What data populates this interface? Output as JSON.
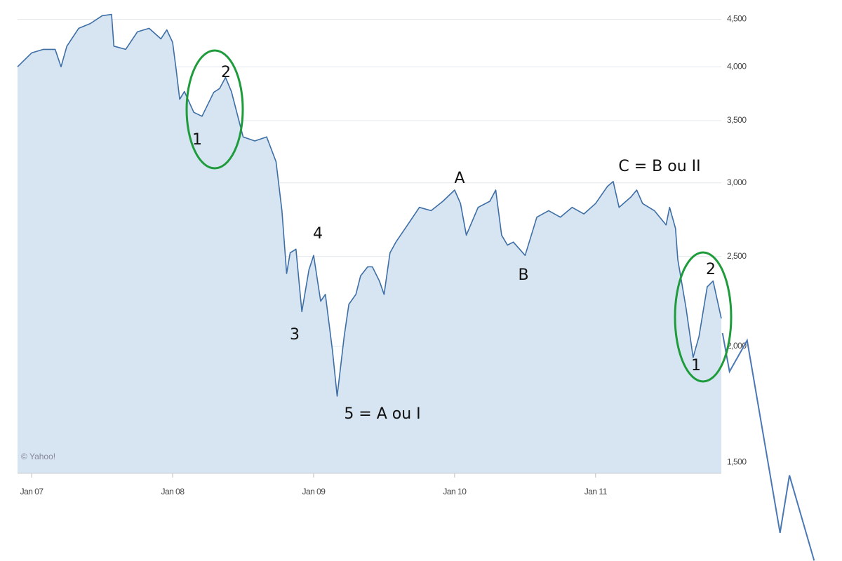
{
  "chart_data": {
    "type": "area",
    "source": "© Yahoo!",
    "x": [
      -1.2,
      0,
      1,
      2,
      2.5,
      3,
      4,
      5,
      6,
      6.8,
      7,
      8,
      9,
      10,
      11,
      11.5,
      12,
      12.3,
      12.6,
      13,
      13.8,
      14.5,
      15.5,
      16,
      16.5,
      17,
      18,
      19,
      20,
      20.8,
      21.3,
      21.7,
      22,
      22.5,
      23,
      23.6,
      24,
      24.6,
      25,
      25.6,
      26,
      26.6,
      27,
      27.6,
      28,
      28.6,
      29,
      29.6,
      30,
      30.5,
      31,
      32,
      33,
      34,
      35,
      36,
      36.5,
      37,
      38,
      39,
      39.5,
      40,
      40.5,
      41,
      42,
      43,
      44,
      45,
      46,
      47,
      48,
      49,
      49.5,
      50,
      51,
      51.5,
      52,
      53,
      54,
      54.3,
      54.8,
      55,
      55.7,
      56.3,
      56.8,
      57.5,
      58,
      58.7
    ],
    "series": [
      {
        "color": "#3d6ea5",
        "fill": "#d6e5f1",
        "values": [
          4000,
          4140,
          4176,
          4176,
          4000,
          4210,
          4400,
          4453,
          4540,
          4555,
          4210,
          4176,
          4362,
          4400,
          4287,
          4383,
          4250,
          3970,
          3690,
          3762,
          3573,
          3538,
          3754,
          3790,
          3896,
          3762,
          3362,
          3328,
          3362,
          3162,
          2800,
          2396,
          2522,
          2545,
          2180,
          2418,
          2506,
          2237,
          2275,
          1980,
          1768,
          2050,
          2220,
          2275,
          2382,
          2436,
          2436,
          2352,
          2275,
          2522,
          2590,
          2703,
          2823,
          2800,
          2866,
          2947,
          2850,
          2635,
          2823,
          2866,
          2947,
          2635,
          2571,
          2590,
          2506,
          2755,
          2800,
          2755,
          2823,
          2777,
          2850,
          2973,
          3010,
          2823,
          2896,
          2947,
          2850,
          2800,
          2703,
          2823,
          2680,
          2480,
          2198,
          1946,
          2050,
          2318,
          2352,
          2143
        ]
      }
    ],
    "forecast": {
      "color": "#4a78b5",
      "x": [
        58.8,
        59.4,
        60.9,
        63.7,
        64.5,
        66.6
      ],
      "values": [
        2067,
        1879,
        2030,
        1260,
        1453,
        1176
      ]
    },
    "xlim": [
      -1.2,
      58.7
    ],
    "xticks": [
      {
        "value": 0,
        "label": "Jan 07"
      },
      {
        "value": 12,
        "label": "Jan 08"
      },
      {
        "value": 24,
        "label": "Jan 09"
      },
      {
        "value": 36,
        "label": "Jan 10"
      },
      {
        "value": 48,
        "label": "Jan 11"
      }
    ],
    "ylim": [
      1460,
      4720
    ],
    "yticks": [
      {
        "value": 1500,
        "label": "1,500"
      },
      {
        "value": 2000,
        "label": "2,000"
      },
      {
        "value": 2500,
        "label": "2,500"
      },
      {
        "value": 3000,
        "label": "3,000"
      },
      {
        "value": 3500,
        "label": "3,500"
      },
      {
        "value": 4000,
        "label": "4,000"
      },
      {
        "value": 4500,
        "label": "4,500"
      }
    ],
    "log_scale": true,
    "grid": true,
    "annotations": [
      "2",
      "1",
      "3",
      "4",
      "5 = A ou I",
      "A",
      "B",
      "C = B ou II",
      "2",
      "1"
    ]
  }
}
